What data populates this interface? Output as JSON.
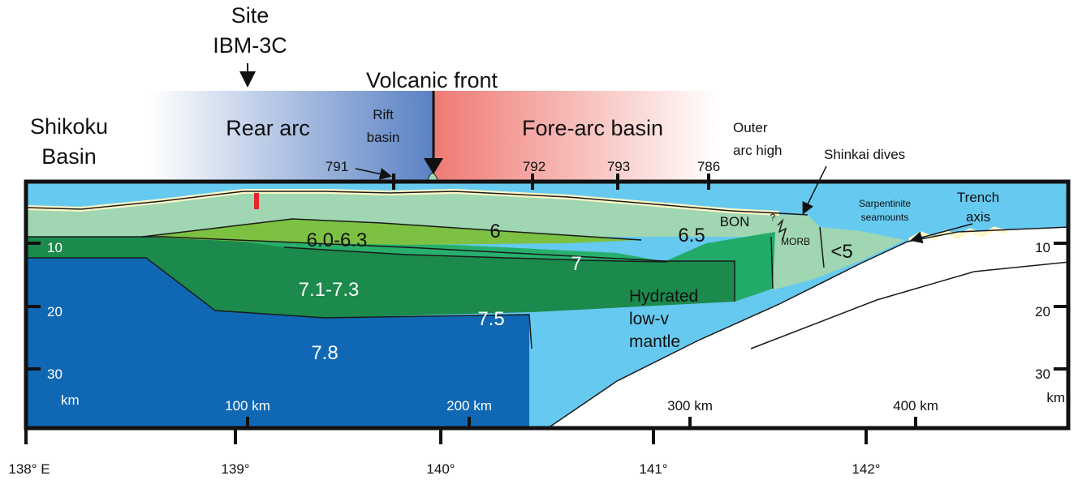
{
  "header": {
    "site": "Site",
    "site_id": "IBM-3C",
    "volcanic_front": "Volcanic front"
  },
  "regions": {
    "shikoku": [
      "Shikoku",
      "Basin"
    ],
    "rear_arc": "Rear arc",
    "rift_basin": [
      "Rift",
      "basin"
    ],
    "fore_arc_basin": "Fore-arc basin",
    "outer_arc_high": [
      "Outer",
      "arc high"
    ],
    "shinkai_dives": "Shinkai dives",
    "seamounts": [
      "Sarpentinite",
      "seamounts"
    ],
    "trench_axis": [
      "Trench",
      "axis"
    ],
    "bon": "BON",
    "question": "?",
    "morb": "MORB",
    "hydrated": [
      "Hydrated",
      "low-v",
      "mantle"
    ]
  },
  "drill_sites": [
    "791",
    "792",
    "793",
    "786"
  ],
  "velocities": [
    "<5",
    "6.0-6.3",
    "6",
    "6.5",
    "7",
    "7.1-7.3",
    "7.5",
    "7.8"
  ],
  "depth_left": [
    "10",
    "20",
    "30",
    "km"
  ],
  "depth_right": [
    "10",
    "20",
    "30",
    "km"
  ],
  "distance": [
    "100 km",
    "200 km",
    "300 km",
    "400 km"
  ],
  "longitude": [
    "138° E",
    "139°",
    "140°",
    "141°",
    "142°"
  ]
}
